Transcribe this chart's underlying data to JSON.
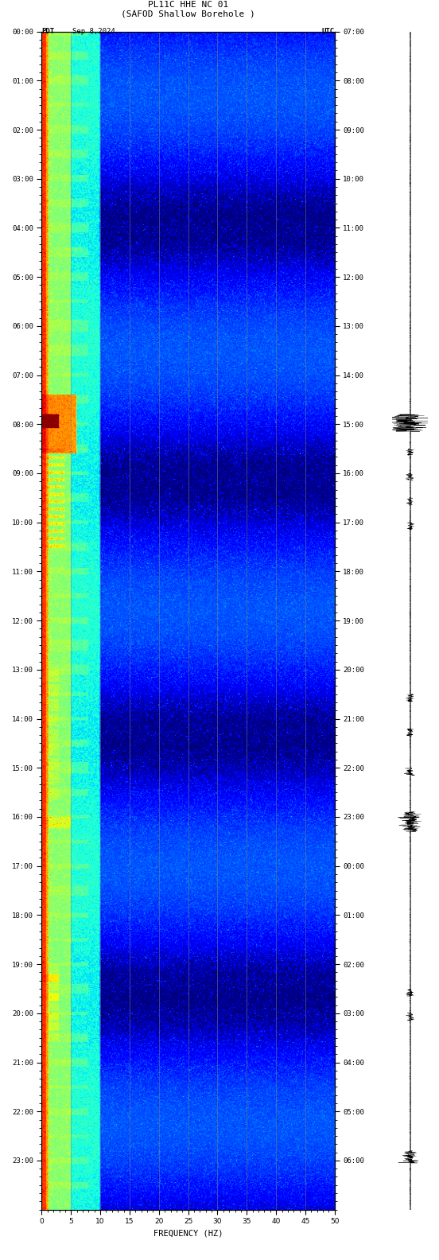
{
  "title_line1": "PL11C HHE NC 01",
  "title_line2": "(SAFOD Shallow Borehole )",
  "label_left": "PDT",
  "label_date": "Sep 8,2024",
  "label_right": "UTC",
  "xlabel": "FREQUENCY (HZ)",
  "freq_min": 0,
  "freq_max": 50,
  "pdt_labels": [
    "00:00",
    "01:00",
    "02:00",
    "03:00",
    "04:00",
    "05:00",
    "06:00",
    "07:00",
    "08:00",
    "09:00",
    "10:00",
    "11:00",
    "12:00",
    "13:00",
    "14:00",
    "15:00",
    "16:00",
    "17:00",
    "18:00",
    "19:00",
    "20:00",
    "21:00",
    "22:00",
    "23:00"
  ],
  "utc_labels": [
    "07:00",
    "08:00",
    "09:00",
    "10:00",
    "11:00",
    "12:00",
    "13:00",
    "14:00",
    "15:00",
    "16:00",
    "17:00",
    "18:00",
    "19:00",
    "20:00",
    "21:00",
    "22:00",
    "23:00",
    "00:00",
    "01:00",
    "02:00",
    "03:00",
    "04:00",
    "05:00",
    "06:00"
  ],
  "grid_freq_lines": [
    5,
    10,
    15,
    20,
    25,
    30,
    35,
    40,
    45
  ],
  "title_fontsize": 8,
  "tick_fontsize": 6.5,
  "label_fontsize": 7.5,
  "figure_width": 5.52,
  "figure_height": 15.84
}
